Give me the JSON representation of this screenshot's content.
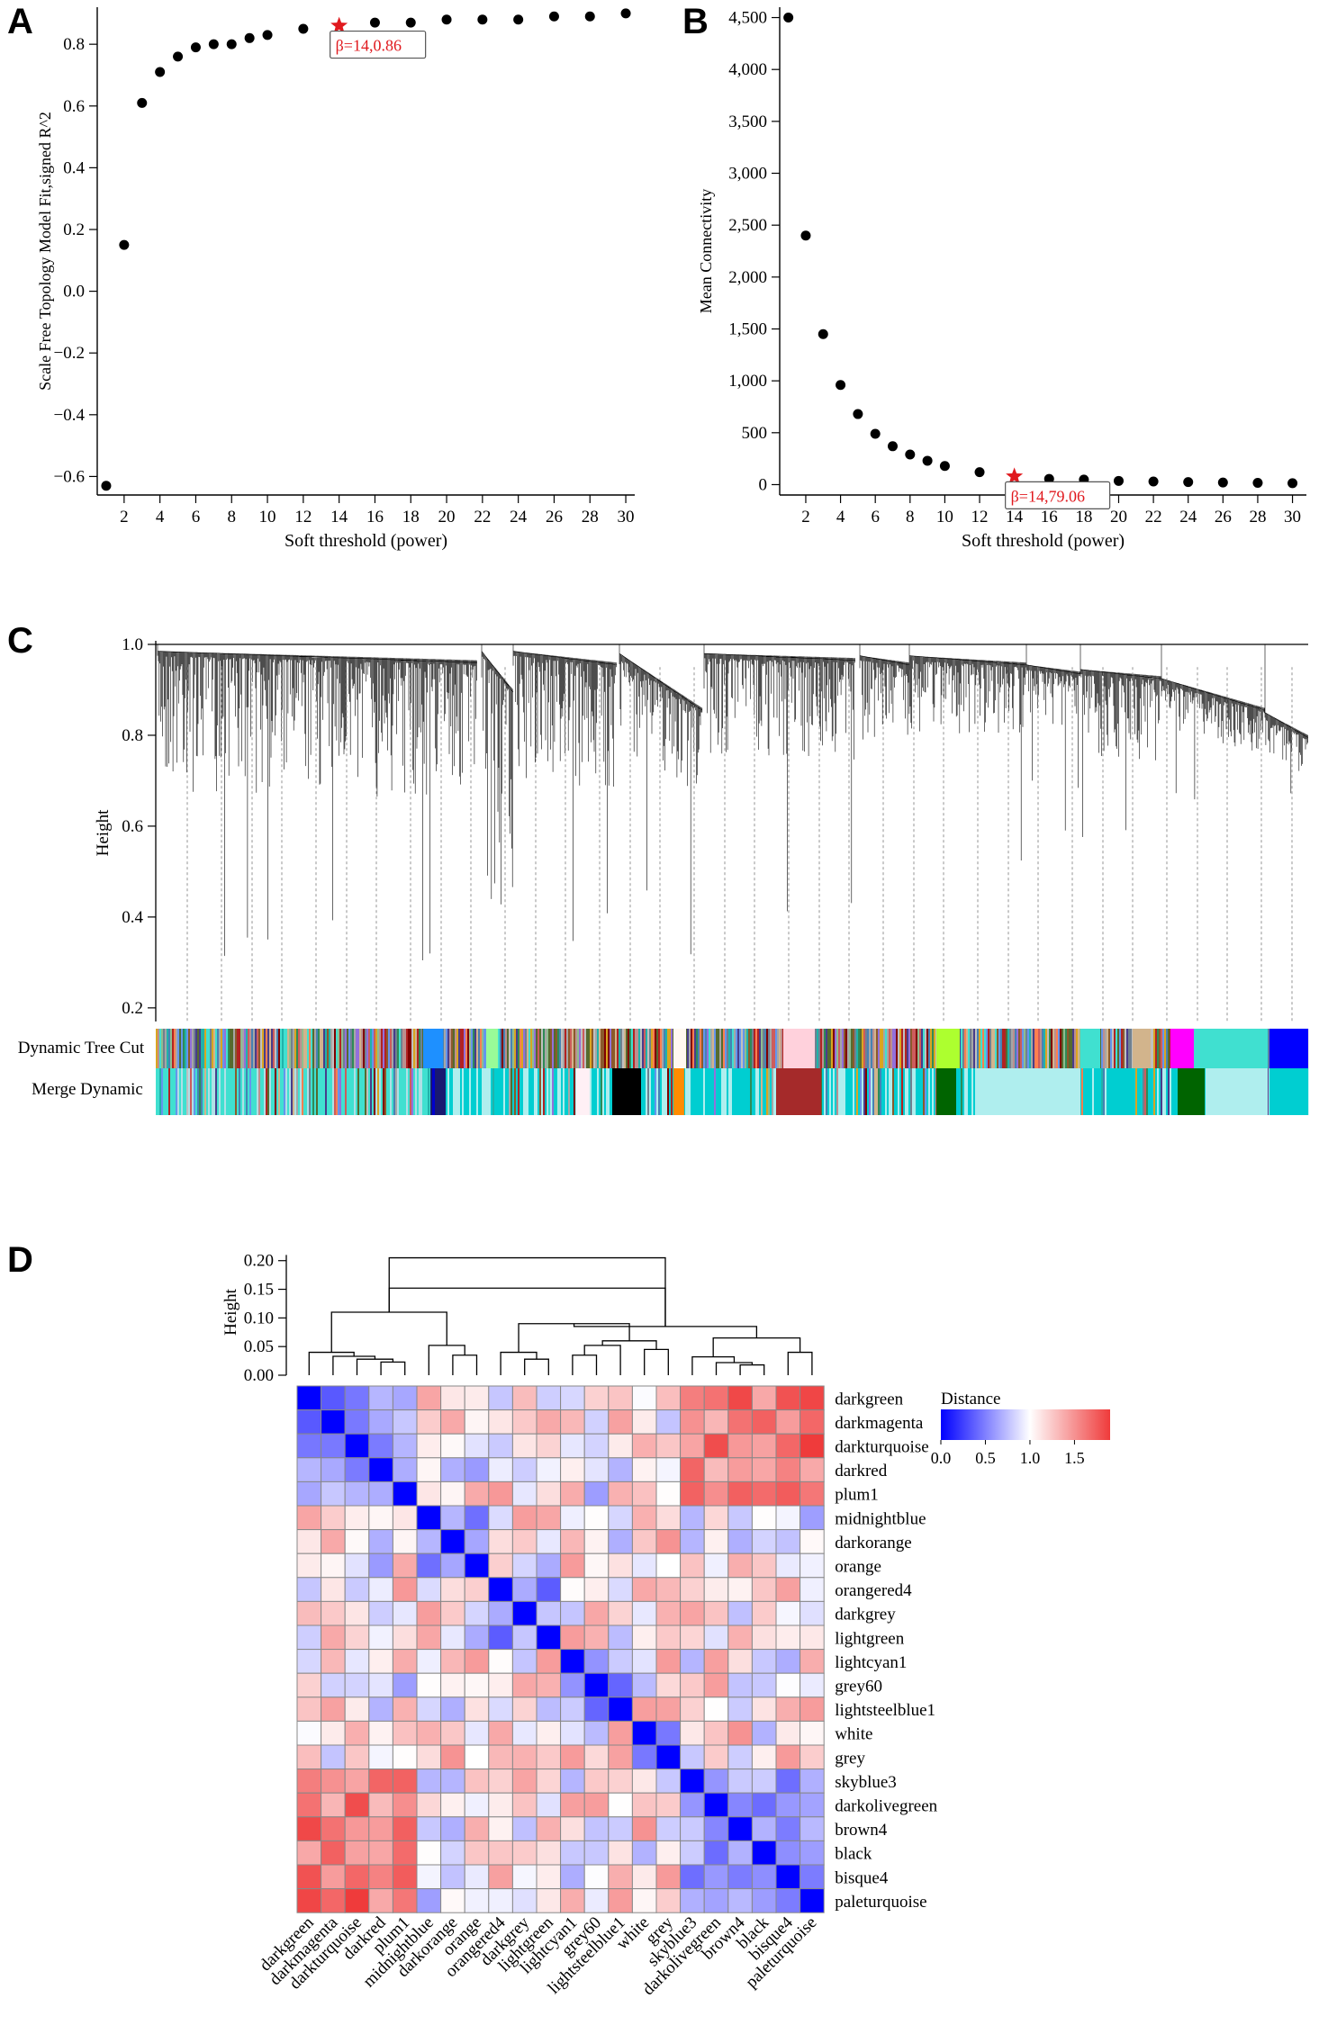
{
  "panels": {
    "a": "A",
    "b": "B",
    "c": "C",
    "d": "D"
  },
  "chart_data": [
    {
      "panel": "A",
      "type": "scatter",
      "xlabel": "Soft threshold (power)",
      "ylabel": "Scale Free Topology Model Fit,signed R^2",
      "xlim": [
        0.5,
        30.5
      ],
      "ylim": [
        -0.66,
        0.92
      ],
      "xticks": [
        2,
        4,
        6,
        8,
        10,
        12,
        14,
        16,
        18,
        20,
        22,
        24,
        26,
        28,
        30
      ],
      "yticks": [
        -0.6,
        -0.4,
        -0.2,
        0.0,
        0.2,
        0.4,
        0.6,
        0.8
      ],
      "ytick_labels": [
        "−0.6",
        "−0.4",
        "−0.2",
        "0.0",
        "0.2",
        "0.4",
        "0.6",
        "0.8"
      ],
      "grid": false,
      "x": [
        1,
        2,
        3,
        4,
        5,
        6,
        7,
        8,
        9,
        10,
        12,
        16,
        18,
        20,
        22,
        24,
        26,
        28,
        30
      ],
      "y": [
        -0.63,
        0.15,
        0.61,
        0.71,
        0.76,
        0.79,
        0.8,
        0.8,
        0.82,
        0.83,
        0.85,
        0.87,
        0.87,
        0.88,
        0.88,
        0.88,
        0.89,
        0.89,
        0.9
      ],
      "highlight": {
        "x": 14,
        "y": 0.86,
        "label": "β=14,0.86",
        "color": "#e0191e"
      }
    },
    {
      "panel": "B",
      "type": "scatter",
      "xlabel": "Soft threshold (power)",
      "ylabel": "Mean Connectivity",
      "xlim": [
        0.5,
        30.8
      ],
      "ylim": [
        -100,
        4600
      ],
      "xticks": [
        2,
        4,
        6,
        8,
        10,
        12,
        14,
        16,
        18,
        20,
        22,
        24,
        26,
        28,
        30
      ],
      "yticks": [
        0,
        500,
        1000,
        1500,
        2000,
        2500,
        3000,
        3500,
        4000,
        4500
      ],
      "ytick_labels": [
        "0",
        "500",
        "1,000",
        "1,500",
        "2,000",
        "2,500",
        "3,000",
        "3,500",
        "4,000",
        "4,500"
      ],
      "grid": false,
      "x": [
        1,
        2,
        3,
        4,
        5,
        6,
        7,
        8,
        9,
        10,
        12,
        16,
        18,
        20,
        22,
        24,
        26,
        28,
        30
      ],
      "y": [
        4500,
        2400,
        1450,
        960,
        680,
        490,
        370,
        290,
        230,
        180,
        120,
        55,
        48,
        36,
        30,
        25,
        20,
        17,
        14
      ],
      "highlight": {
        "x": 14,
        "y": 79.06,
        "label": "β=14,79.06",
        "color": "#e0191e"
      }
    },
    {
      "panel": "C",
      "type": "dendrogram",
      "ylabel": "Height",
      "ylim": [
        0.17,
        1.0
      ],
      "yticks": [
        0.2,
        0.4,
        0.6,
        0.8,
        1.0
      ],
      "ytick_labels": [
        "0.2",
        "0.4",
        "0.6",
        "0.8",
        "1.0"
      ],
      "color_rows": [
        "Dynamic Tree Cut",
        "Merge Dynamic"
      ]
    },
    {
      "panel": "D",
      "type": "heatmap",
      "ylabel": "Height",
      "dendro_yticks": [
        0.0,
        0.05,
        0.1,
        0.15,
        0.2
      ],
      "dendro_ytick_labels": [
        "0.00",
        "0.05",
        "0.10",
        "0.15",
        "0.20"
      ],
      "legend_title": "Distance",
      "legend_ticks": [
        0.0,
        0.5,
        1.0,
        1.5
      ],
      "legend_tick_labels": [
        "0.0",
        "0.5",
        "1.0",
        "1.5"
      ],
      "legend_range": [
        0.0,
        1.9
      ],
      "colorscale": [
        "#0000ff",
        "#ffffff",
        "#ef3b3b"
      ],
      "labels": [
        "darkgreen",
        "darkmagenta",
        "darkturquoise",
        "darkred",
        "plum1",
        "midnightblue",
        "darkorange",
        "orange",
        "orangered4",
        "darkgrey",
        "lightgreen",
        "lightcyan1",
        "grey60",
        "lightsteelblue1",
        "white",
        "grey",
        "skyblue3",
        "darkolivegreen",
        "brown4",
        "black",
        "bisque4",
        "paleturquoise"
      ]
    }
  ]
}
